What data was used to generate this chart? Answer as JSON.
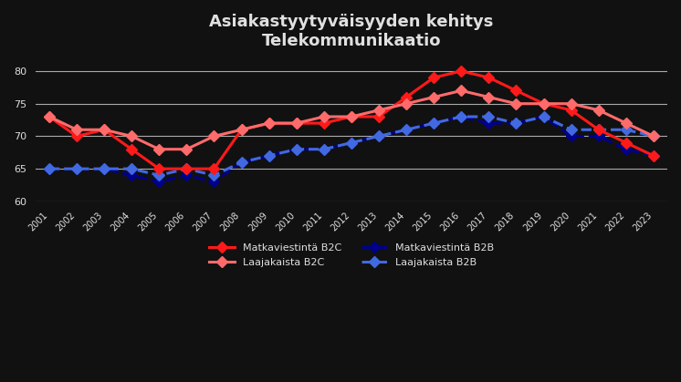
{
  "title_line1": "Asiakastyytyväisyyden kehitys",
  "title_line2": "Telekommunikaatio",
  "background_color": "#1a1a2e",
  "plot_bg_color": "#0d0d1a",
  "text_color": "#e0e0e0",
  "grid_color": "#888888",
  "ylim": [
    60,
    82
  ],
  "yticks": [
    60,
    65,
    70,
    75,
    80
  ],
  "x_labels": [
    "2001",
    "2002",
    "2003",
    "2004",
    "2005",
    "2006",
    "2007",
    "2008",
    "2009",
    "2010",
    "2011",
    "2012",
    "2013",
    "2014",
    "2015",
    "2016",
    "2017",
    "2018",
    "2019",
    "2020",
    "2021",
    "2022",
    "2023"
  ],
  "matkaviestinta_b2c": [
    73,
    70,
    71,
    68,
    65,
    65,
    65,
    71,
    72,
    72,
    72,
    73,
    73,
    76,
    79,
    80,
    79,
    77,
    75,
    74,
    71,
    69,
    67
  ],
  "laajakaista_b2c": [
    73,
    71,
    71,
    70,
    68,
    68,
    70,
    71,
    72,
    72,
    73,
    73,
    74,
    75,
    76,
    77,
    76,
    75,
    75,
    75,
    74,
    72,
    70
  ],
  "matkaviestinta_b2b": [
    65,
    65,
    65,
    64,
    63,
    64,
    63,
    66,
    67,
    68,
    68,
    69,
    70,
    71,
    72,
    73,
    72,
    72,
    73,
    70,
    70,
    68,
    67
  ],
  "laajakaista_b2b": [
    65,
    65,
    65,
    65,
    64,
    65,
    64,
    66,
    67,
    68,
    68,
    69,
    70,
    71,
    72,
    73,
    73,
    72,
    73,
    71,
    71,
    71,
    70
  ],
  "color_b2c_matkav": "#ff1a1a",
  "color_b2c_laajakais": "#ff6b6b",
  "color_b2b_matkav": "#00008b",
  "color_b2b_laajakais": "#4169e1",
  "legend_entries": [
    "Matkaviestintä B2C",
    "Laajakaista B2C",
    "Matkaviestintä B2B",
    "Laajakaista B2B"
  ]
}
